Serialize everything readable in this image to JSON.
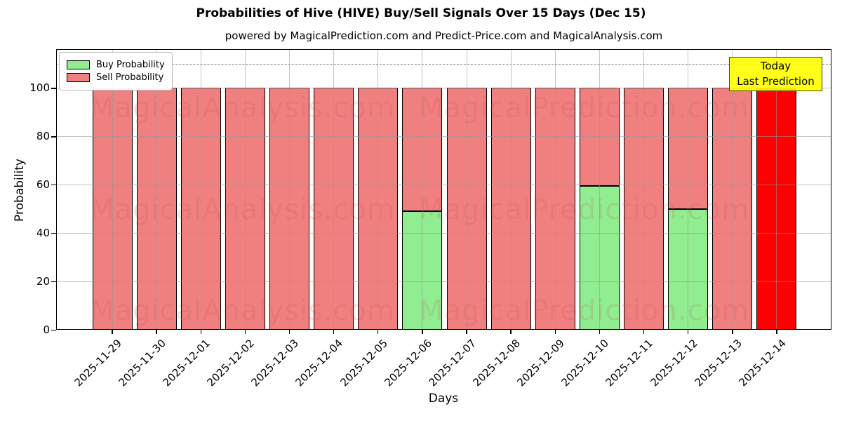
{
  "figure": {
    "title": "Probabilities of Hive (HIVE) Buy/Sell Signals Over 15 Days (Dec 15)",
    "subtitle": "powered by MagicalPrediction.com and Predict-Price.com and MagicalAnalysis.com"
  },
  "legend": {
    "items": [
      {
        "label": "Buy Probability",
        "color": "#90EE90"
      },
      {
        "label": "Sell Probability",
        "color": "#F08080"
      }
    ]
  },
  "today_box": {
    "line1": "Today",
    "line2": "Last Prediction",
    "bg_color": "#FFFF00"
  },
  "watermarks": {
    "left_text": "MagicalAnalysis.com",
    "right_text": "MagicalPrediction.com",
    "color": "rgba(200,80,80,0.17)"
  },
  "chart_data": {
    "type": "bar",
    "stacked": true,
    "title": "Probabilities of Hive (HIVE) Buy/Sell Signals Over 15 Days (Dec 15)",
    "xlabel": "Days",
    "ylabel": "Probability",
    "ylim": [
      0,
      116
    ],
    "yticks": [
      0,
      20,
      40,
      60,
      80,
      100
    ],
    "dashed_guideline_y": 110,
    "grid": true,
    "legend_position": "upper left",
    "categories": [
      "2025-11-29",
      "2025-11-30",
      "2025-12-01",
      "2025-12-02",
      "2025-12-03",
      "2025-12-04",
      "2025-12-05",
      "2025-12-06",
      "2025-12-07",
      "2025-12-08",
      "2025-12-09",
      "2025-12-10",
      "2025-12-11",
      "2025-12-12",
      "2025-12-13",
      "2025-12-14"
    ],
    "series": [
      {
        "name": "Buy Probability",
        "color": "#90EE90",
        "values": [
          0,
          0,
          0,
          0,
          0,
          0,
          0,
          49,
          0,
          0,
          0,
          59.5,
          0,
          50,
          0,
          0
        ]
      },
      {
        "name": "Sell Probability",
        "color": "#F08080",
        "values": [
          100,
          100,
          100,
          100,
          100,
          100,
          100,
          51,
          100,
          100,
          100,
          40.5,
          100,
          50,
          100,
          0
        ]
      },
      {
        "name": "Today Last Prediction",
        "color": "#FF0000",
        "values": [
          0,
          0,
          0,
          0,
          0,
          0,
          0,
          0,
          0,
          0,
          0,
          0,
          0,
          0,
          0,
          100
        ]
      }
    ]
  }
}
